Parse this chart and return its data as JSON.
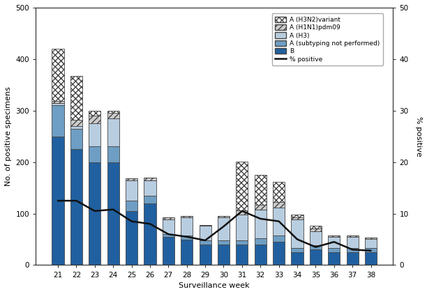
{
  "weeks": [
    21,
    22,
    23,
    24,
    25,
    26,
    27,
    28,
    29,
    30,
    31,
    32,
    33,
    34,
    35,
    36,
    37,
    38
  ],
  "B": [
    250,
    225,
    200,
    200,
    105,
    120,
    55,
    50,
    40,
    40,
    40,
    40,
    45,
    25,
    30,
    25,
    25,
    25
  ],
  "A_subtyping": [
    60,
    40,
    30,
    30,
    20,
    15,
    5,
    8,
    8,
    8,
    8,
    12,
    12,
    8,
    8,
    8,
    8,
    8
  ],
  "A_H3": [
    5,
    5,
    45,
    55,
    40,
    30,
    28,
    35,
    28,
    45,
    50,
    55,
    55,
    55,
    28,
    22,
    22,
    18
  ],
  "A_H1N1": [
    3,
    12,
    15,
    10,
    4,
    5,
    5,
    2,
    2,
    2,
    8,
    10,
    10,
    5,
    5,
    3,
    3,
    3
  ],
  "A_H3N2v": [
    102,
    85,
    10,
    5,
    0,
    0,
    0,
    0,
    0,
    0,
    95,
    58,
    40,
    5,
    5,
    0,
    0,
    0
  ],
  "pct_positive": [
    12.5,
    12.5,
    10.5,
    10.8,
    8.5,
    8.0,
    6.0,
    5.5,
    4.8,
    7.5,
    10.5,
    9.0,
    8.5,
    5.0,
    3.5,
    4.5,
    3.0,
    2.8
  ],
  "color_B": "#2060a0",
  "color_A_subtyping": "#6e9ec4",
  "color_A_H3": "#b8cde0",
  "color_A_H1N1_face": "#cccccc",
  "color_A_H3N2v_face": "#ffffff",
  "color_line": "#111111",
  "color_edge": "#444444",
  "ylabel_left": "No. of positive specimens",
  "ylabel_right": "% positive",
  "xlabel": "Surveillance week",
  "ylim_left": [
    0,
    500
  ],
  "ylim_right": [
    0,
    50
  ],
  "yticks_left": [
    0,
    100,
    200,
    300,
    400,
    500
  ],
  "yticks_right": [
    0,
    10,
    20,
    30,
    40,
    50
  ],
  "legend_labels": [
    "A (H3N2)variant",
    "A (H1N1)pdm09",
    "A (H3)",
    "A (subtyping not performed)",
    "B",
    "% positive"
  ],
  "figsize": [
    6.12,
    4.22
  ],
  "dpi": 100
}
